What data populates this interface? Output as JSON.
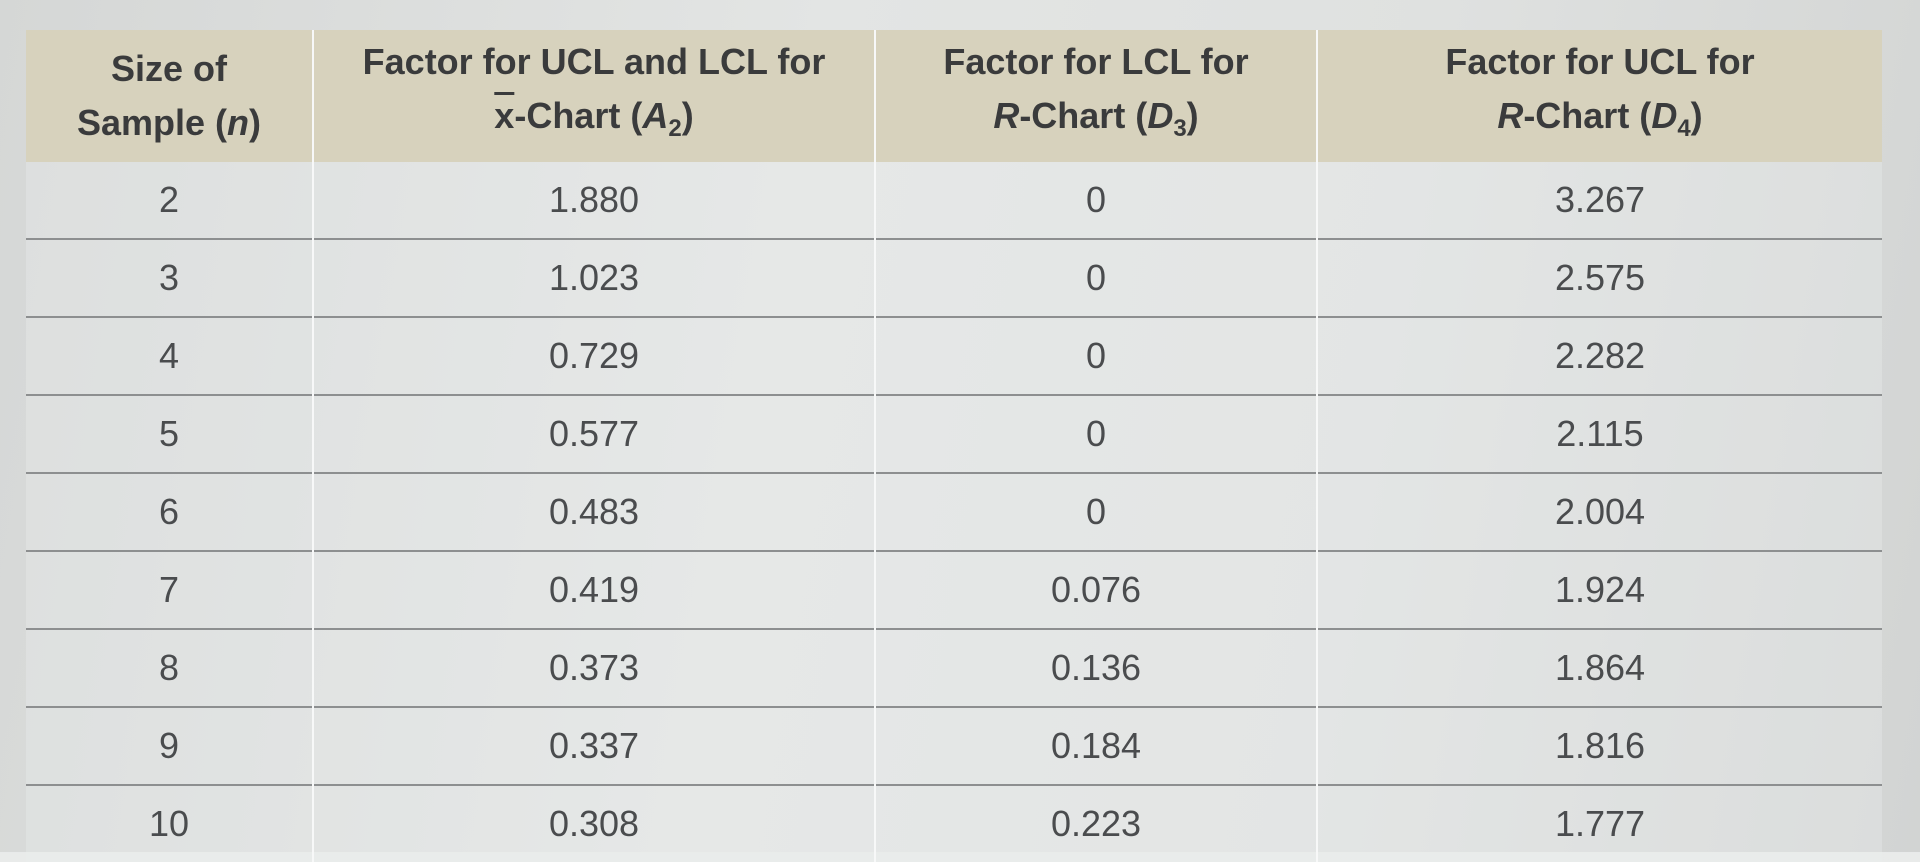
{
  "table": {
    "headers": [
      {
        "line1": "Size of",
        "line2_prefix": "Sample (",
        "line2_var": "n",
        "line2_suffix": ")"
      },
      {
        "line1": "Factor for UCL and LCL for",
        "line2_xbar": "x",
        "line2_mid": "-Chart (",
        "line2_var": "A",
        "line2_sub": "2",
        "line2_suffix": ")"
      },
      {
        "line1": "Factor for LCL for",
        "line2_var_prefix": "R",
        "line2_mid": "-Chart (",
        "line2_var": "D",
        "line2_sub": "3",
        "line2_suffix": ")"
      },
      {
        "line1": "Factor for UCL for",
        "line2_var_prefix": "R",
        "line2_mid": "-Chart (",
        "line2_var": "D",
        "line2_sub": "4",
        "line2_suffix": ")"
      }
    ],
    "rows": [
      [
        "2",
        "1.880",
        "0",
        "3.267"
      ],
      [
        "3",
        "1.023",
        "0",
        "2.575"
      ],
      [
        "4",
        "0.729",
        "0",
        "2.282"
      ],
      [
        "5",
        "0.577",
        "0",
        "2.115"
      ],
      [
        "6",
        "0.483",
        "0",
        "2.004"
      ],
      [
        "7",
        "0.419",
        "0.076",
        "1.924"
      ],
      [
        "8",
        "0.373",
        "0.136",
        "1.864"
      ],
      [
        "9",
        "0.337",
        "0.184",
        "1.816"
      ],
      [
        "10",
        "0.308",
        "0.223",
        "1.777"
      ]
    ]
  }
}
